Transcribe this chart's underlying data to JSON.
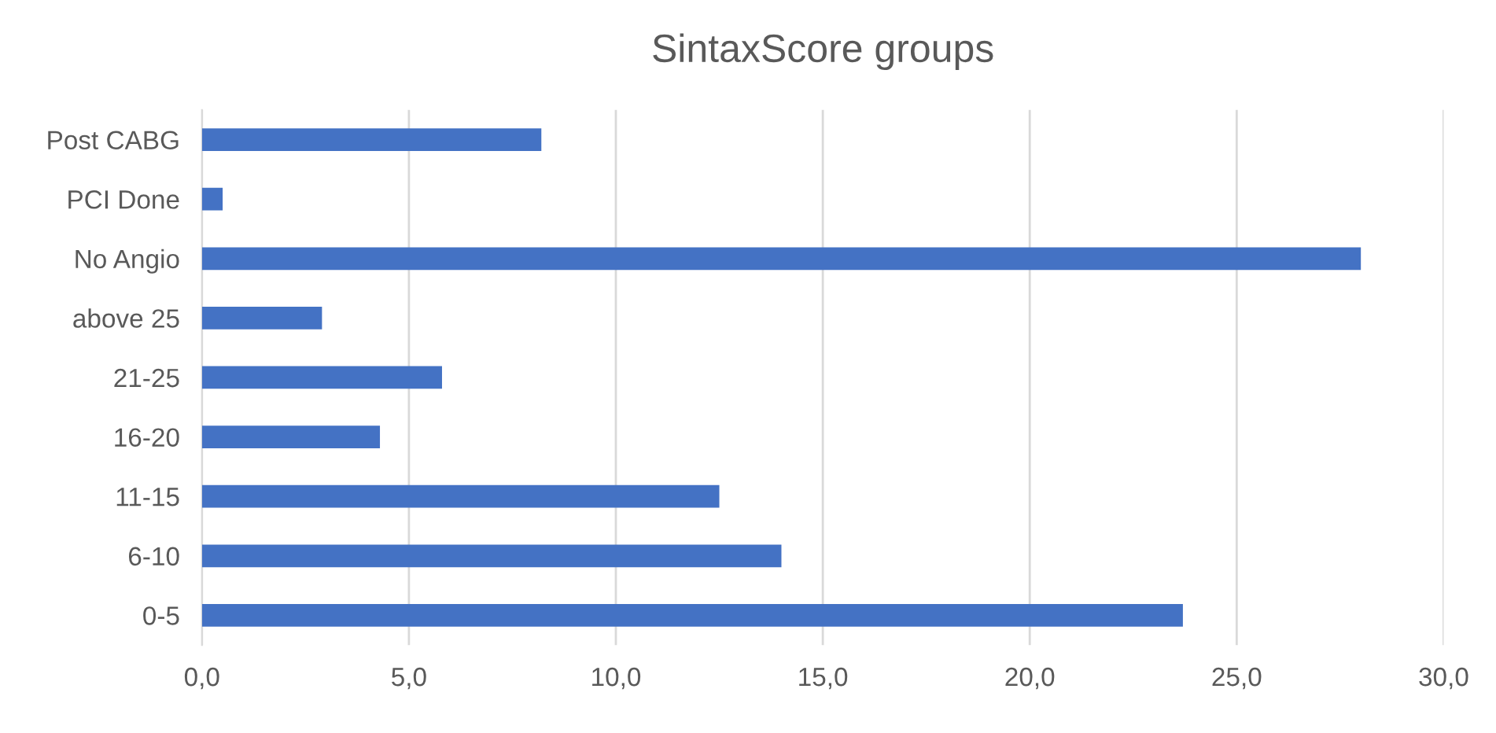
{
  "chart_data": {
    "type": "bar",
    "orientation": "horizontal",
    "title": "SintaxScore groups",
    "categories": [
      "Post CABG",
      "PCI Done",
      "No Angio",
      "above 25",
      "21-25",
      "16-20",
      "11-15",
      "6-10",
      "0-5"
    ],
    "values": [
      8.2,
      0.5,
      28.0,
      2.9,
      5.8,
      4.3,
      12.5,
      14.0,
      23.7
    ],
    "color": "#4472c4",
    "xlim": [
      0,
      30
    ],
    "xticks": [
      {
        "value": 0,
        "label": "0,0"
      },
      {
        "value": 5,
        "label": "5,0"
      },
      {
        "value": 10,
        "label": "10,0"
      },
      {
        "value": 15,
        "label": "15,0"
      },
      {
        "value": 20,
        "label": "20,0"
      },
      {
        "value": 25,
        "label": "25,0"
      },
      {
        "value": 30,
        "label": "30,0"
      }
    ],
    "grid": "x"
  }
}
